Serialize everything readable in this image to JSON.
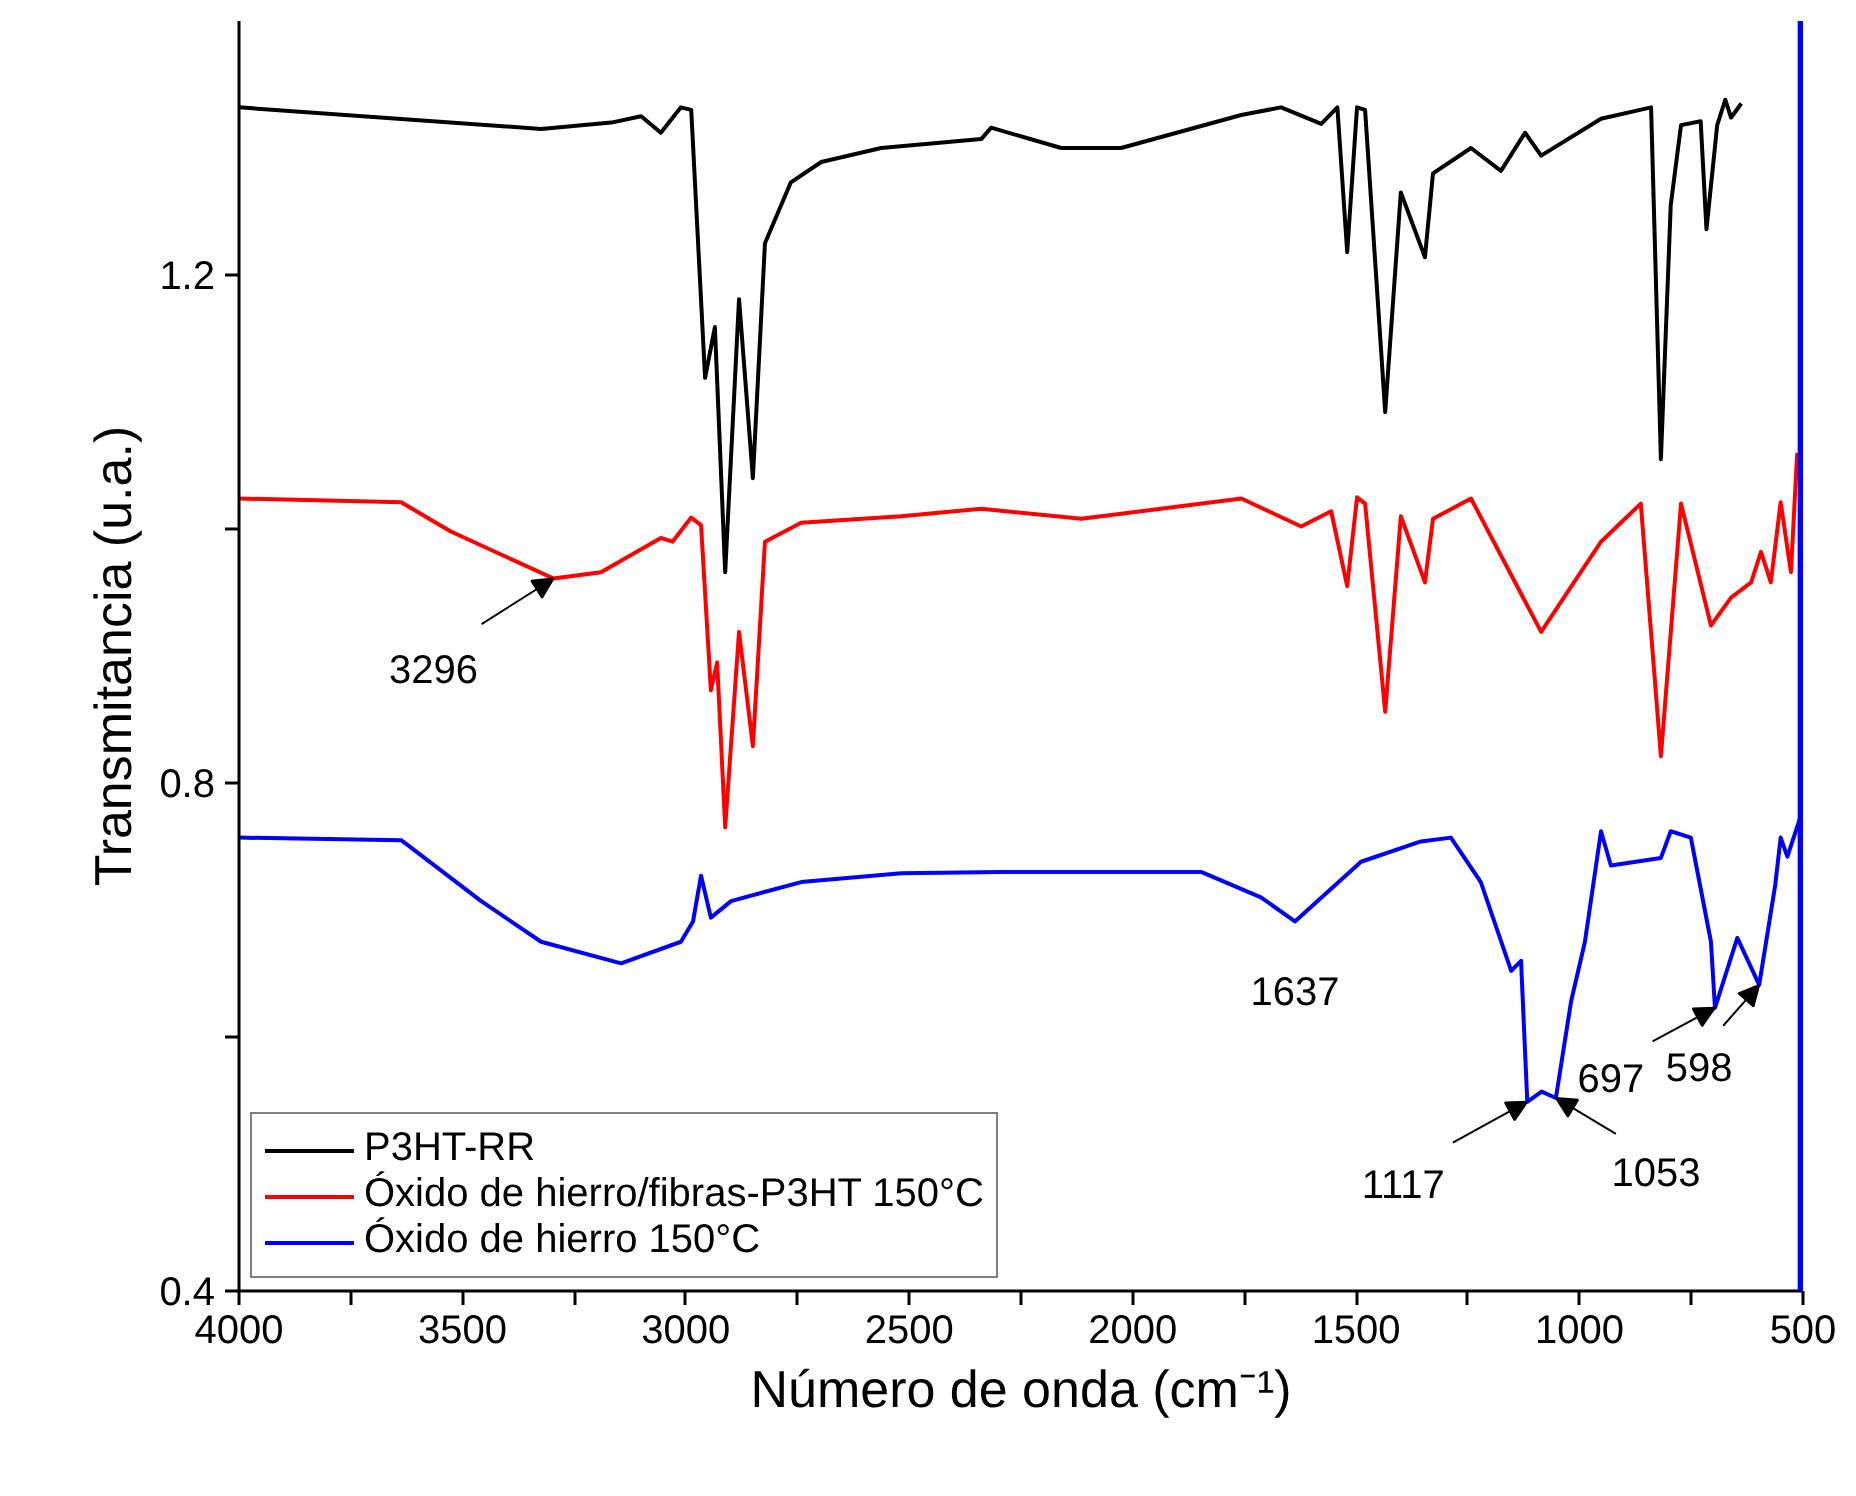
{
  "chart_data": {
    "type": "line",
    "xlabel": "Número de onda (cm⁻¹)",
    "ylabel": "Transmitancia (u.a.)",
    "xlim": [
      4000,
      500
    ],
    "ylim": [
      0.4,
      1.4
    ],
    "xticks": [
      4000,
      {
        "value": 3750,
        "label": null
      },
      3500,
      {
        "value": 3250,
        "label": null
      },
      3000,
      {
        "value": 2750,
        "label": null
      },
      2500,
      {
        "value": 2250,
        "label": null
      },
      2000,
      {
        "value": 1750,
        "label": null
      },
      1500,
      {
        "value": 1250,
        "label": null
      },
      1000,
      {
        "value": 750,
        "label": null
      },
      500
    ],
    "yticks": [
      0.4,
      {
        "value": 0.6,
        "label": null
      },
      0.8,
      {
        "value": 1.0,
        "label": null
      },
      1.2
    ],
    "grid": false,
    "legend": "bottom left",
    "line_style": "solid",
    "marker": "none",
    "series": [
      {
        "name": "P3HT-RR",
        "color": "#000000",
        "x": [
          4000,
          3324,
          3167,
          3100,
          3056,
          3011,
          2988,
          2957,
          2935,
          2912,
          2881,
          2850,
          2823,
          2765,
          2697,
          2563,
          2339,
          2317,
          2160,
          2026,
          1757,
          1668,
          1578,
          1542,
          1520,
          1498,
          1480,
          1435,
          1400,
          1346,
          1328,
          1243,
          1176,
          1122,
          1086,
          952,
          840,
          818,
          796,
          773,
          729,
          716,
          692,
          674,
          661,
          638
        ],
        "values": [
          1.332,
          1.315,
          1.32,
          1.325,
          1.312,
          1.332,
          1.33,
          1.119,
          1.159,
          0.966,
          1.181,
          1.04,
          1.225,
          1.273,
          1.289,
          1.3,
          1.307,
          1.316,
          1.3,
          1.3,
          1.326,
          1.332,
          1.319,
          1.332,
          1.218,
          1.332,
          1.33,
          1.092,
          1.265,
          1.214,
          1.28,
          1.3,
          1.282,
          1.312,
          1.294,
          1.323,
          1.332,
          1.055,
          1.255,
          1.318,
          1.321,
          1.236,
          1.318,
          1.338,
          1.324,
          1.335
        ]
      },
      {
        "name": "Óxido de hierro/fibras-P3HT 150°C",
        "color": "#ff0000",
        "x": [
          4000,
          3637,
          3526,
          3296,
          3190,
          3056,
          3030,
          2988,
          2966,
          2944,
          2930,
          2912,
          2881,
          2850,
          2823,
          2742,
          2518,
          2339,
          2115,
          1757,
          1623,
          1556,
          1520,
          1498,
          1480,
          1435,
          1400,
          1346,
          1328,
          1243,
          1086,
          952,
          863,
          818,
          773,
          706,
          661,
          616,
          594,
          572,
          550,
          527,
          513
        ],
        "values": [
          1.024,
          1.021,
          0.998,
          0.961,
          0.966,
          0.993,
          0.99,
          1.009,
          1.003,
          0.873,
          0.895,
          0.765,
          0.919,
          0.829,
          0.99,
          1.005,
          1.01,
          1.016,
          1.008,
          1.024,
          1.002,
          1.014,
          0.955,
          1.025,
          1.02,
          0.856,
          1.01,
          0.958,
          1.008,
          1.024,
          0.919,
          0.99,
          1.02,
          0.821,
          1.02,
          0.924,
          0.946,
          0.958,
          0.982,
          0.958,
          1.021,
          0.966,
          1.06
        ]
      },
      {
        "name": "Óxido de hierro 150°C",
        "color": "#0000ff",
        "x": [
          4000,
          3637,
          3458,
          3324,
          3145,
          3011,
          2984,
          2966,
          2944,
          2899,
          2742,
          2518,
          2295,
          1847,
          1713,
          1637,
          1489,
          1355,
          1288,
          1221,
          1153,
          1131,
          1117,
          1085,
          1053,
          1019,
          988,
          952,
          930,
          818,
          796,
          751,
          706,
          697,
          647,
          598,
          562,
          550,
          535,
          504
        ],
        "values": [
          0.757,
          0.755,
          0.707,
          0.675,
          0.658,
          0.675,
          0.691,
          0.727,
          0.694,
          0.707,
          0.722,
          0.729,
          0.73,
          0.73,
          0.71,
          0.691,
          0.738,
          0.754,
          0.757,
          0.722,
          0.652,
          0.66,
          0.549,
          0.557,
          0.552,
          0.628,
          0.675,
          0.762,
          0.735,
          0.741,
          0.762,
          0.757,
          0.675,
          0.623,
          0.678,
          0.641,
          0.72,
          0.757,
          0.742,
          0.775
        ]
      }
    ],
    "ref_lines": [
      {
        "axis": "x",
        "value": 503,
        "color": "#0000ff"
      }
    ],
    "annotations": [
      {
        "text": "3296",
        "x": 3296,
        "y": 0.961
      },
      {
        "text": "1637",
        "x": 1637,
        "y": 0.691
      },
      {
        "text": "1117",
        "x": 1117,
        "y": 0.549
      },
      {
        "text": "1053",
        "x": 1053,
        "y": 0.552
      },
      {
        "text": "697",
        "x": 697,
        "y": 0.623
      },
      {
        "text": "598",
        "x": 598,
        "y": 0.641
      }
    ]
  }
}
